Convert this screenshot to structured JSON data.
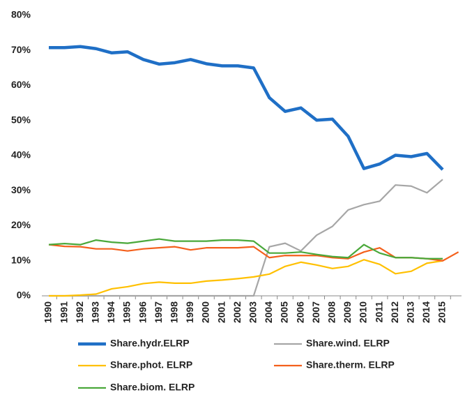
{
  "chart_data": {
    "type": "line",
    "categories": [
      "1990",
      "1991",
      "1992",
      "1993",
      "1994",
      "1995",
      "1996",
      "1997",
      "1998",
      "1999",
      "2000",
      "2001",
      "2002",
      "2003",
      "2004",
      "2005",
      "2006",
      "2007",
      "2008",
      "2009",
      "2010",
      "2011",
      "2012",
      "2013",
      "2014",
      "2015",
      null
    ],
    "series": [
      {
        "name": "Share.hydr.ELRP",
        "color": "#1f6fc6",
        "values": [
          70.8,
          70.8,
          71.1,
          70.5,
          69.3,
          69.6,
          67.4,
          66.1,
          66.5,
          67.4,
          66.2,
          65.6,
          65.6,
          65.0,
          56.5,
          52.6,
          53.6,
          50.1,
          50.4,
          45.5,
          36.3,
          37.6,
          40.1,
          39.7,
          40.6,
          36.0,
          null
        ]
      },
      {
        "name": "Share.wind. ELRP",
        "color": "#a6a6a6",
        "values": [
          0,
          0,
          0,
          0,
          0,
          0,
          0,
          0,
          0,
          0,
          0,
          0,
          0,
          0,
          14.0,
          15.0,
          12.8,
          17.3,
          19.8,
          24.5,
          26.0,
          27.0,
          31.6,
          31.3,
          29.4,
          33.2,
          null
        ]
      },
      {
        "name": "Share.phot. ELRP",
        "color": "#ffc000",
        "values": [
          0,
          0,
          0.2,
          0.5,
          2.0,
          2.6,
          3.5,
          3.9,
          3.6,
          3.6,
          4.2,
          4.5,
          4.9,
          5.4,
          6.2,
          8.4,
          9.6,
          8.8,
          7.8,
          8.4,
          10.3,
          9.0,
          6.3,
          7.0,
          9.3,
          10.0,
          null
        ]
      },
      {
        "name": "Share.therm. ELRP",
        "color": "#f4601c",
        "values": [
          14.6,
          14.1,
          14.0,
          13.4,
          13.4,
          12.8,
          13.4,
          13.7,
          14.0,
          13.1,
          13.7,
          13.7,
          13.7,
          14.0,
          10.9,
          11.5,
          11.5,
          11.5,
          10.9,
          10.6,
          12.5,
          13.7,
          10.9,
          10.9,
          10.6,
          10.0,
          12.5
        ]
      },
      {
        "name": "Share.biom. ELRP",
        "color": "#4aa83a",
        "values": [
          14.6,
          14.9,
          14.6,
          15.9,
          15.3,
          15.0,
          15.6,
          16.2,
          15.6,
          15.6,
          15.6,
          15.9,
          15.9,
          15.6,
          12.2,
          12.2,
          12.5,
          11.8,
          11.2,
          10.9,
          14.6,
          12.2,
          10.9,
          10.9,
          10.6,
          10.6,
          null
        ]
      }
    ],
    "ylim": [
      0,
      80
    ],
    "yticks": [
      {
        "value": 0,
        "label": "0%"
      },
      {
        "value": 10,
        "label": "10%"
      },
      {
        "value": 20,
        "label": "20%"
      },
      {
        "value": 30,
        "label": "30%"
      },
      {
        "value": 40,
        "label": "40%"
      },
      {
        "value": 50,
        "label": "50%"
      },
      {
        "value": 60,
        "label": "60%"
      },
      {
        "value": 70,
        "label": "70%"
      },
      {
        "value": 80,
        "label": "80%"
      }
    ],
    "legend": "bottom"
  }
}
